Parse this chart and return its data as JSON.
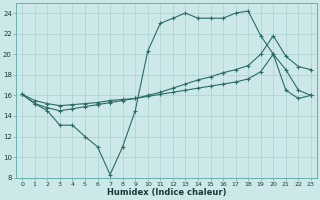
{
  "xlabel": "Humidex (Indice chaleur)",
  "bg_color": "#cde8e8",
  "line_color": "#2a6b68",
  "grid_color": "#aad0d0",
  "xlim": [
    -0.5,
    23.5
  ],
  "ylim": [
    8,
    25
  ],
  "xticks": [
    0,
    1,
    2,
    3,
    4,
    5,
    6,
    7,
    8,
    9,
    10,
    11,
    12,
    13,
    14,
    15,
    16,
    17,
    18,
    19,
    20,
    21,
    22,
    23
  ],
  "yticks": [
    8,
    10,
    12,
    14,
    16,
    18,
    20,
    22,
    24
  ],
  "line1_x": [
    0,
    1,
    2,
    3,
    4,
    5,
    6,
    7,
    8,
    9,
    10,
    11,
    12,
    13,
    14,
    15,
    16,
    17,
    18,
    19,
    20,
    21,
    22,
    23
  ],
  "line1_y": [
    16.1,
    15.2,
    14.5,
    13.1,
    13.1,
    12.0,
    11.0,
    8.3,
    11.0,
    14.5,
    20.3,
    23.0,
    23.5,
    24.0,
    23.5,
    23.5,
    23.5,
    24.0,
    24.2,
    21.8,
    20.0,
    18.5,
    16.5,
    16.0
  ],
  "line2_x": [
    0,
    1,
    2,
    3,
    4,
    5,
    6,
    7,
    8,
    9,
    10,
    11,
    12,
    13,
    14,
    15,
    16,
    17,
    18,
    19,
    20,
    21,
    22,
    23
  ],
  "line2_y": [
    16.1,
    15.2,
    14.8,
    14.5,
    14.7,
    14.9,
    15.1,
    15.3,
    15.5,
    15.7,
    16.0,
    16.3,
    16.7,
    17.1,
    17.5,
    17.8,
    18.2,
    18.5,
    18.9,
    20.0,
    21.8,
    19.8,
    18.8,
    18.5
  ],
  "line3_x": [
    0,
    1,
    2,
    3,
    4,
    5,
    6,
    7,
    8,
    9,
    10,
    11,
    12,
    13,
    14,
    15,
    16,
    17,
    18,
    19,
    20,
    21,
    22,
    23
  ],
  "line3_y": [
    16.1,
    15.5,
    15.2,
    15.0,
    15.1,
    15.2,
    15.3,
    15.5,
    15.6,
    15.7,
    15.9,
    16.1,
    16.3,
    16.5,
    16.7,
    16.9,
    17.1,
    17.3,
    17.6,
    18.3,
    20.0,
    16.5,
    15.7,
    16.0
  ]
}
